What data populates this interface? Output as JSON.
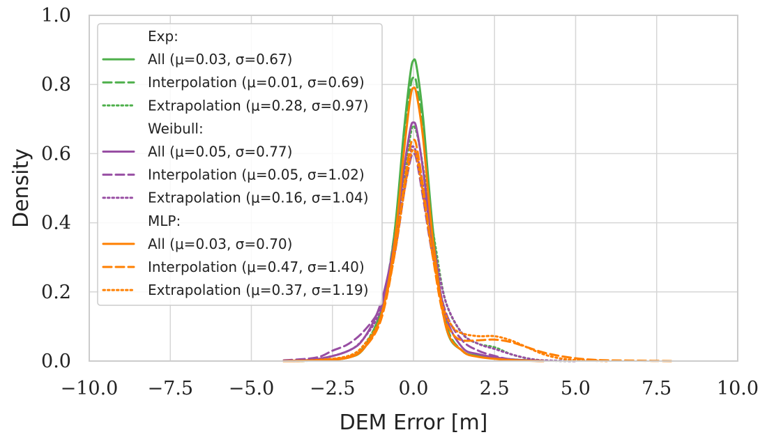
{
  "chart_data": {
    "type": "line",
    "subtype": "kernel-density-estimate",
    "title": "",
    "xlabel": "DEM Error [m]",
    "ylabel": "Density",
    "xlim": [
      -10,
      10
    ],
    "ylim": [
      0,
      1
    ],
    "xticks": [
      -10,
      -7.5,
      -5,
      -2.5,
      0,
      2.5,
      5,
      7.5,
      10
    ],
    "xtick_labels": [
      "−10.0",
      "−7.5",
      "−5.0",
      "−2.5",
      "0.0",
      "2.5",
      "5.0",
      "7.5",
      "10.0"
    ],
    "yticks": [
      0,
      0.2,
      0.4,
      0.6,
      0.8,
      1.0
    ],
    "ytick_labels": [
      "0.0",
      "0.2",
      "0.4",
      "0.6",
      "0.8",
      "1.0"
    ],
    "grid": true,
    "legend_placement": "upper-left",
    "groups": [
      {
        "name": "Exp:",
        "color": "#4daf4a",
        "series": [
          {
            "name": "All (μ=0.03, σ=0.67)",
            "style": "solid",
            "peak_x": 0.0,
            "peak_y": 0.87,
            "points": [
              [
                -4,
                0
              ],
              [
                -3,
                0.002
              ],
              [
                -2,
                0.01
              ],
              [
                -1.5,
                0.04
              ],
              [
                -1,
                0.14
              ],
              [
                -0.6,
                0.36
              ],
              [
                -0.3,
                0.66
              ],
              [
                -0.1,
                0.83
              ],
              [
                0,
                0.87
              ],
              [
                0.1,
                0.85
              ],
              [
                0.3,
                0.7
              ],
              [
                0.6,
                0.38
              ],
              [
                1,
                0.1
              ],
              [
                1.5,
                0.03
              ],
              [
                2,
                0.015
              ],
              [
                3,
                0.005
              ],
              [
                4,
                0
              ]
            ]
          },
          {
            "name": "Interpolation (μ=0.01, σ=0.69)",
            "style": "dashed",
            "peak_x": 0.0,
            "peak_y": 0.82,
            "points": [
              [
                -4,
                0
              ],
              [
                -3,
                0.003
              ],
              [
                -2,
                0.012
              ],
              [
                -1.5,
                0.045
              ],
              [
                -1,
                0.15
              ],
              [
                -0.6,
                0.36
              ],
              [
                -0.3,
                0.63
              ],
              [
                -0.1,
                0.79
              ],
              [
                0,
                0.82
              ],
              [
                0.1,
                0.8
              ],
              [
                0.3,
                0.66
              ],
              [
                0.6,
                0.37
              ],
              [
                1,
                0.11
              ],
              [
                1.5,
                0.03
              ],
              [
                2,
                0.015
              ],
              [
                3,
                0.005
              ],
              [
                4,
                0
              ]
            ]
          },
          {
            "name": "Extrapolation (μ=0.28, σ=0.97)",
            "style": "dotted",
            "peak_x": 0.0,
            "peak_y": 0.68,
            "points": [
              [
                -4,
                0
              ],
              [
                -3,
                0.002
              ],
              [
                -2,
                0.015
              ],
              [
                -1.5,
                0.05
              ],
              [
                -1,
                0.14
              ],
              [
                -0.6,
                0.3
              ],
              [
                -0.3,
                0.52
              ],
              [
                -0.1,
                0.65
              ],
              [
                0,
                0.68
              ],
              [
                0.15,
                0.64
              ],
              [
                0.4,
                0.5
              ],
              [
                0.7,
                0.32
              ],
              [
                1,
                0.17
              ],
              [
                1.5,
                0.08
              ],
              [
                2,
                0.05
              ],
              [
                2.5,
                0.04
              ],
              [
                3,
                0.02
              ],
              [
                3.5,
                0.008
              ],
              [
                4,
                0.002
              ],
              [
                5,
                0
              ]
            ]
          }
        ]
      },
      {
        "name": "Weibull:",
        "color": "#984ea3",
        "series": [
          {
            "name": "All (μ=0.05, σ=0.77)",
            "style": "solid",
            "peak_x": 0.0,
            "peak_y": 0.69,
            "points": [
              [
                -4,
                0
              ],
              [
                -3,
                0.005
              ],
              [
                -2,
                0.03
              ],
              [
                -1.5,
                0.07
              ],
              [
                -1,
                0.17
              ],
              [
                -0.6,
                0.34
              ],
              [
                -0.3,
                0.55
              ],
              [
                -0.1,
                0.67
              ],
              [
                0,
                0.69
              ],
              [
                0.1,
                0.67
              ],
              [
                0.3,
                0.55
              ],
              [
                0.6,
                0.33
              ],
              [
                1,
                0.13
              ],
              [
                1.5,
                0.04
              ],
              [
                2,
                0.02
              ],
              [
                3,
                0.005
              ],
              [
                4,
                0
              ]
            ]
          },
          {
            "name": "Interpolation (μ=0.05, σ=1.02)",
            "style": "dashed",
            "peak_x": 0.0,
            "peak_y": 0.6,
            "points": [
              [
                -4,
                0.002
              ],
              [
                -3,
                0.01
              ],
              [
                -2.5,
                0.03
              ],
              [
                -2,
                0.05
              ],
              [
                -1.5,
                0.09
              ],
              [
                -1,
                0.16
              ],
              [
                -0.6,
                0.3
              ],
              [
                -0.3,
                0.48
              ],
              [
                -0.1,
                0.58
              ],
              [
                0,
                0.6
              ],
              [
                0.1,
                0.58
              ],
              [
                0.3,
                0.47
              ],
              [
                0.6,
                0.3
              ],
              [
                1,
                0.14
              ],
              [
                1.5,
                0.06
              ],
              [
                2,
                0.03
              ],
              [
                2.5,
                0.015
              ],
              [
                3,
                0.005
              ],
              [
                4,
                0
              ]
            ]
          },
          {
            "name": "Extrapolation (μ=0.16, σ=1.04)",
            "style": "dotted",
            "peak_x": 0.0,
            "peak_y": 0.62,
            "points": [
              [
                -4,
                0
              ],
              [
                -3,
                0.005
              ],
              [
                -2,
                0.03
              ],
              [
                -1.5,
                0.07
              ],
              [
                -1,
                0.15
              ],
              [
                -0.6,
                0.3
              ],
              [
                -0.3,
                0.5
              ],
              [
                -0.1,
                0.6
              ],
              [
                0,
                0.62
              ],
              [
                0.15,
                0.58
              ],
              [
                0.4,
                0.45
              ],
              [
                0.7,
                0.3
              ],
              [
                1,
                0.17
              ],
              [
                1.5,
                0.08
              ],
              [
                2,
                0.05
              ],
              [
                2.5,
                0.035
              ],
              [
                3,
                0.02
              ],
              [
                3.5,
                0.008
              ],
              [
                4,
                0.002
              ],
              [
                5,
                0
              ]
            ]
          }
        ]
      },
      {
        "name": "MLP:",
        "color": "#ff7f00",
        "series": [
          {
            "name": "All (μ=0.03, σ=0.70)",
            "style": "solid",
            "peak_x": 0.0,
            "peak_y": 0.79,
            "points": [
              [
                -4,
                0
              ],
              [
                -3,
                0.002
              ],
              [
                -2,
                0.01
              ],
              [
                -1.5,
                0.04
              ],
              [
                -1,
                0.13
              ],
              [
                -0.6,
                0.33
              ],
              [
                -0.3,
                0.6
              ],
              [
                -0.1,
                0.76
              ],
              [
                0,
                0.79
              ],
              [
                0.1,
                0.77
              ],
              [
                0.3,
                0.64
              ],
              [
                0.6,
                0.35
              ],
              [
                1,
                0.1
              ],
              [
                1.5,
                0.03
              ],
              [
                2,
                0.012
              ],
              [
                3,
                0.003
              ],
              [
                4,
                0
              ]
            ]
          },
          {
            "name": "Interpolation (μ=0.47, σ=1.40)",
            "style": "dashed",
            "peak_x": 0.0,
            "peak_y": 0.64,
            "points": [
              [
                -4,
                0
              ],
              [
                -3,
                0.002
              ],
              [
                -2,
                0.012
              ],
              [
                -1.5,
                0.04
              ],
              [
                -1,
                0.12
              ],
              [
                -0.6,
                0.3
              ],
              [
                -0.3,
                0.5
              ],
              [
                -0.1,
                0.62
              ],
              [
                0,
                0.64
              ],
              [
                0.1,
                0.62
              ],
              [
                0.3,
                0.5
              ],
              [
                0.6,
                0.3
              ],
              [
                0.9,
                0.14
              ],
              [
                1.2,
                0.08
              ],
              [
                1.5,
                0.06
              ],
              [
                2,
                0.06
              ],
              [
                2.5,
                0.062
              ],
              [
                3,
                0.055
              ],
              [
                3.5,
                0.04
              ],
              [
                4,
                0.025
              ],
              [
                4.5,
                0.015
              ],
              [
                5,
                0.008
              ],
              [
                5.5,
                0.004
              ],
              [
                6,
                0.002
              ],
              [
                7,
                0.001
              ],
              [
                8,
                0
              ]
            ]
          },
          {
            "name": "Extrapolation (μ=0.37, σ=1.19)",
            "style": "dotted",
            "peak_x": 0.0,
            "peak_y": 0.61,
            "points": [
              [
                -4,
                0
              ],
              [
                -3,
                0.003
              ],
              [
                -2,
                0.015
              ],
              [
                -1.5,
                0.05
              ],
              [
                -1,
                0.13
              ],
              [
                -0.6,
                0.3
              ],
              [
                -0.3,
                0.48
              ],
              [
                -0.1,
                0.59
              ],
              [
                0,
                0.61
              ],
              [
                0.1,
                0.59
              ],
              [
                0.3,
                0.48
              ],
              [
                0.6,
                0.3
              ],
              [
                0.9,
                0.16
              ],
              [
                1.2,
                0.1
              ],
              [
                1.5,
                0.08
              ],
              [
                2,
                0.072
              ],
              [
                2.5,
                0.072
              ],
              [
                3,
                0.06
              ],
              [
                3.5,
                0.04
              ],
              [
                4,
                0.02
              ],
              [
                4.5,
                0.008
              ],
              [
                5,
                0.003
              ],
              [
                6,
                0
              ]
            ]
          }
        ]
      }
    ]
  }
}
